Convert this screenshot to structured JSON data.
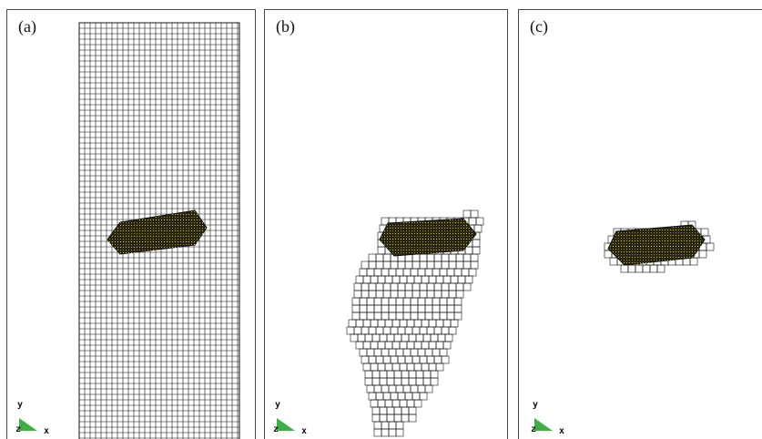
{
  "panels": [
    {
      "label": "(a)",
      "axes": {
        "y": "y",
        "z": "z",
        "x": "x"
      }
    },
    {
      "label": "(b)",
      "axes": {
        "y": "y",
        "z": "z",
        "x": "x"
      }
    },
    {
      "label": "(c)",
      "axes": {
        "y": "y",
        "z": "z",
        "x": "x"
      }
    }
  ],
  "colors": {
    "mesh_line": "#111111",
    "particle_fill": "#2b2710",
    "particle_dots": "#c8c23a",
    "triad_fill": "#3cb043",
    "frame": "#4a4a4a"
  }
}
